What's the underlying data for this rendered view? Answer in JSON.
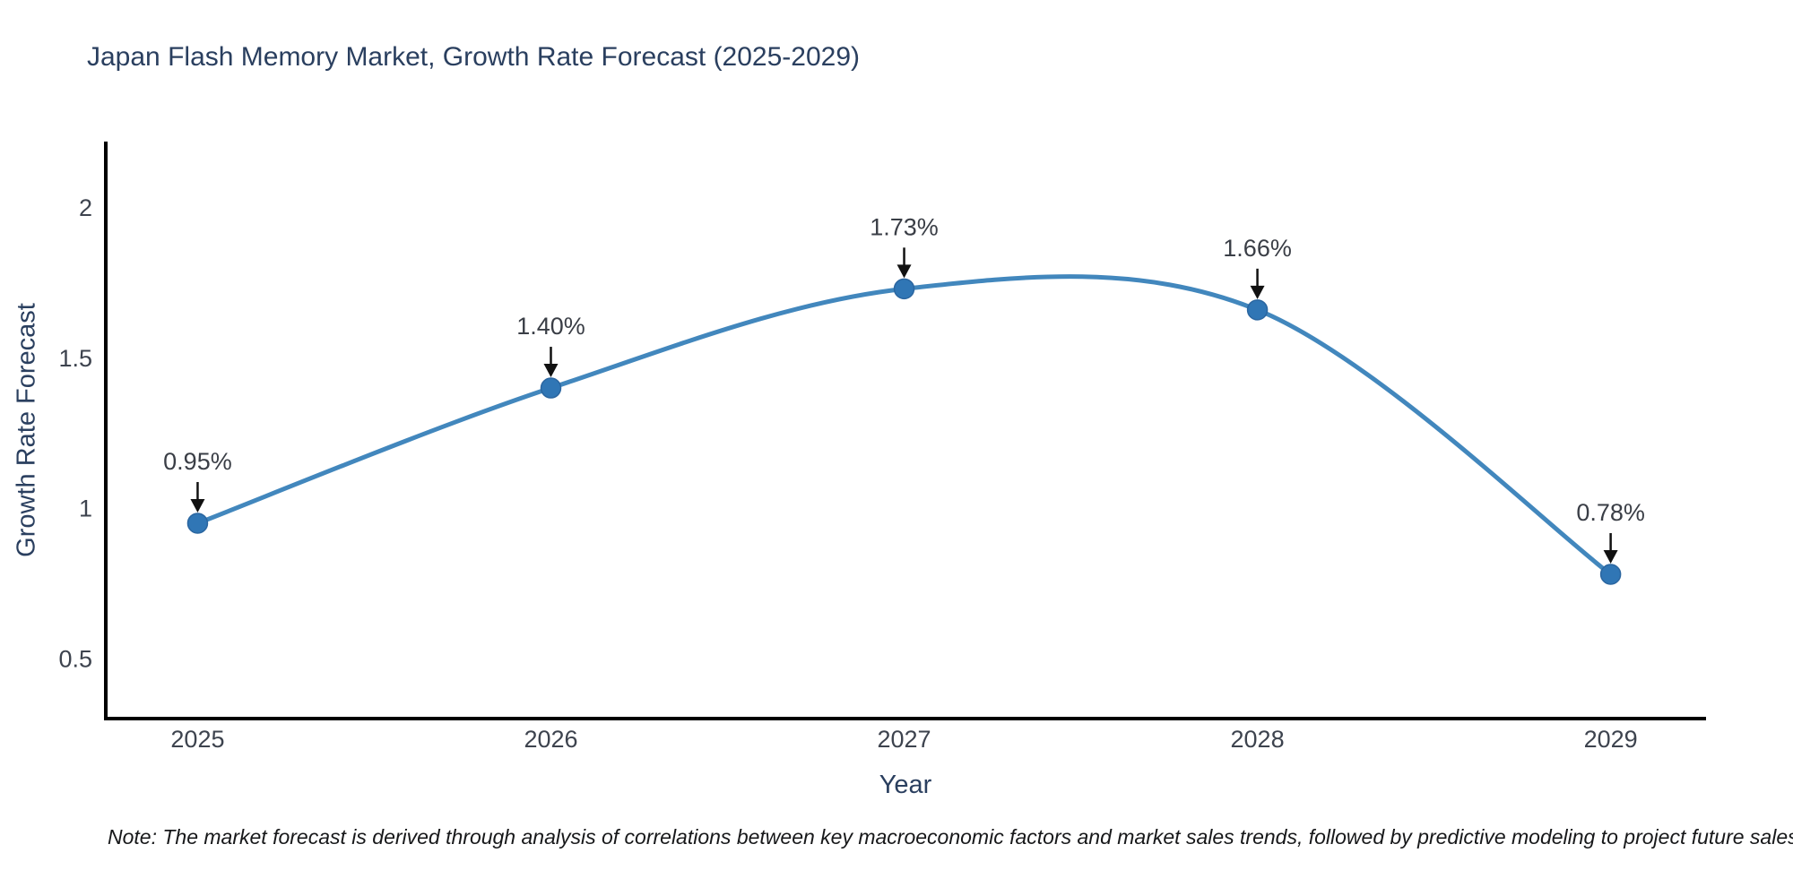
{
  "title": "Japan Flash Memory Market, Growth Rate Forecast (2025-2029)",
  "note": "Note: The market forecast is derived through analysis of correlations between key macroeconomic factors and market sales trends, followed by predictive modeling to project future sales",
  "chart_data": {
    "type": "line",
    "title": "Japan Flash Memory Market, Growth Rate Forecast (2025-2029)",
    "xlabel": "Year",
    "ylabel": "Growth Rate Forecast",
    "x": [
      2025,
      2026,
      2027,
      2028,
      2029
    ],
    "x_labels": [
      "2025",
      "2026",
      "2027",
      "2028",
      "2029"
    ],
    "values": [
      0.95,
      1.4,
      1.73,
      1.66,
      0.78
    ],
    "point_labels": [
      "0.95%",
      "1.40%",
      "1.73%",
      "1.66%",
      "0.78%"
    ],
    "yticks": [
      {
        "value": 0.5,
        "label": "0.5"
      },
      {
        "value": 1,
        "label": "1"
      },
      {
        "value": 1.5,
        "label": "1.5"
      },
      {
        "value": 2,
        "label": "2"
      }
    ],
    "ylim": [
      0.3,
      2.22
    ],
    "xlim": [
      2024.74,
      2029.27
    ],
    "grid": false,
    "legend": "none",
    "line_style": "smooth-spline",
    "annotations": "value labels with black arrows pointing to each marker",
    "colors": {
      "line": "#4287bd",
      "marker_fill": "#3076b5",
      "marker_edge": "#2b66a0",
      "axis": "#000000",
      "arrow": "#111111",
      "title_text": "#2a3f5f",
      "axis_title_text": "#2a3f5f",
      "tick_text": "#3d434e",
      "annotation_text": "#3a3e46",
      "note_text": "#17181a",
      "background": "#ffffff"
    }
  }
}
